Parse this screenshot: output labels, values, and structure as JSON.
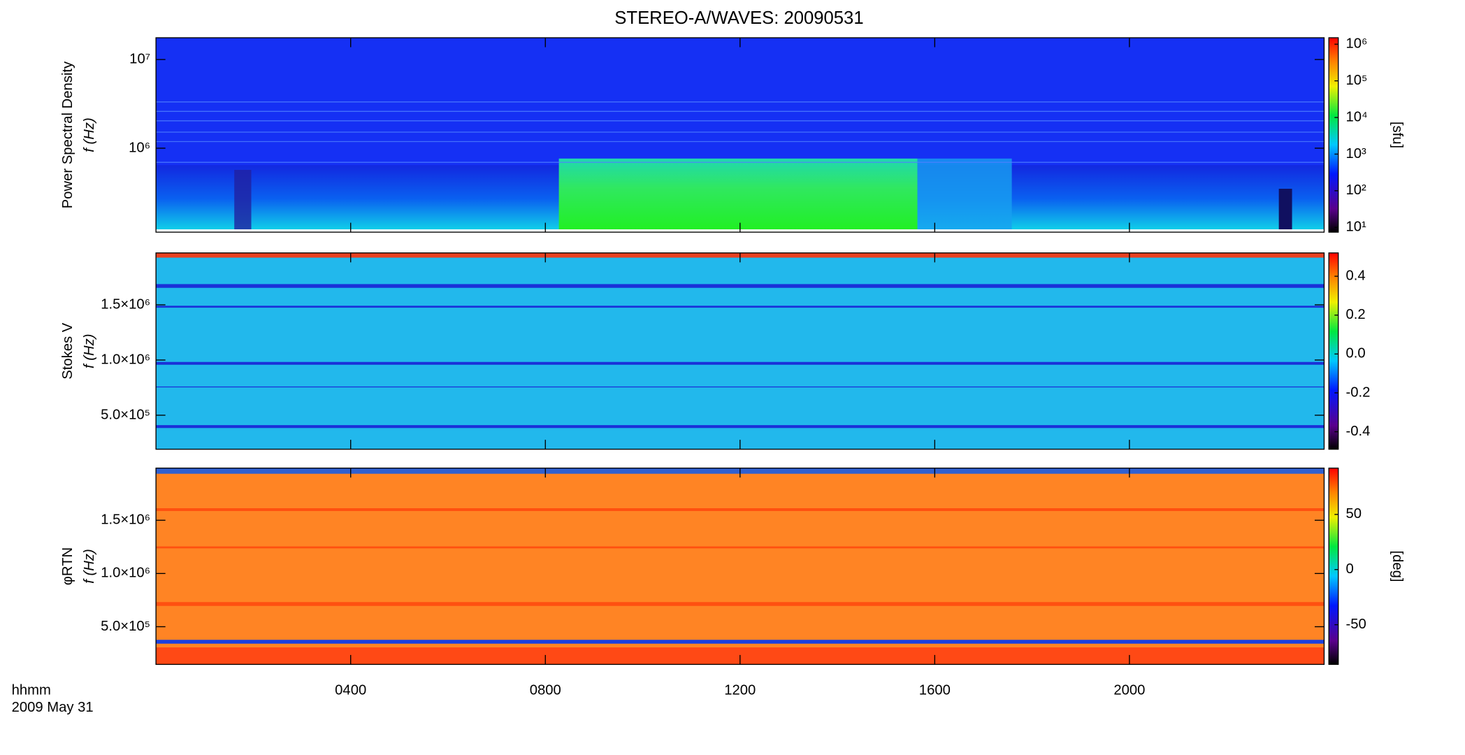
{
  "chart_data": [
    {
      "type": "heatmap",
      "title": "STEREO-A/WAVES: 20090531",
      "ylabel": [
        "Power Spectral Density",
        "f (Hz)"
      ],
      "yscale": "log",
      "ylim": [
        113000,
        17600000
      ],
      "yticks": [
        {
          "value": 1000000,
          "label": "10⁶"
        },
        {
          "value": 10000000,
          "label": "10⁷"
        }
      ],
      "colorbar_label": "[sfu]",
      "colorbar_scale": "log",
      "zlim": [
        7.4,
        1500000
      ],
      "zticks": [
        {
          "value": 10,
          "label": "10¹"
        },
        {
          "value": 100,
          "label": "10²"
        },
        {
          "value": 1000,
          "label": "10³"
        },
        {
          "value": 10000,
          "label": "10⁴"
        },
        {
          "value": 100000,
          "label": "10⁵"
        },
        {
          "value": 1000000,
          "label": "10⁶"
        }
      ]
    },
    {
      "type": "heatmap",
      "ylabel": [
        "Stokes V",
        "f (Hz)"
      ],
      "yscale": "linear",
      "ylim": [
        192000,
        1970000
      ],
      "yticks": [
        {
          "value": 500000,
          "label": "5.0×10⁵"
        },
        {
          "value": 1000000,
          "label": "1.0×10⁶"
        },
        {
          "value": 1500000,
          "label": "1.5×10⁶"
        }
      ],
      "colorbar_scale": "linear",
      "zlim": [
        -0.49,
        0.52
      ],
      "zticks": [
        -0.4,
        -0.2,
        {
          "value": 0,
          "label": "0.0"
        },
        0.2,
        0.4
      ]
    },
    {
      "type": "heatmap",
      "ylabel": [
        "φRTN",
        "f (Hz)"
      ],
      "yscale": "linear",
      "ylim": [
        146000,
        1990000
      ],
      "yticks": [
        {
          "value": 500000,
          "label": "5.0×10⁵"
        },
        {
          "value": 1000000,
          "label": "1.0×10⁶"
        },
        {
          "value": 1500000,
          "label": "1.5×10⁶"
        }
      ],
      "colorbar_label": "[deg]",
      "colorbar_scale": "linear",
      "zlim": [
        -86,
        92
      ],
      "zticks": [
        -50,
        0,
        50
      ],
      "xlim": [
        0,
        24
      ],
      "xticks": [
        {
          "value": 4,
          "label": "0400"
        },
        {
          "value": 8,
          "label": "0800"
        },
        {
          "value": 12,
          "label": "1200"
        },
        {
          "value": 16,
          "label": "1600"
        },
        {
          "value": 20,
          "label": "2000"
        }
      ],
      "xlabel": [
        "hhmm",
        "2009 May 31"
      ]
    }
  ]
}
